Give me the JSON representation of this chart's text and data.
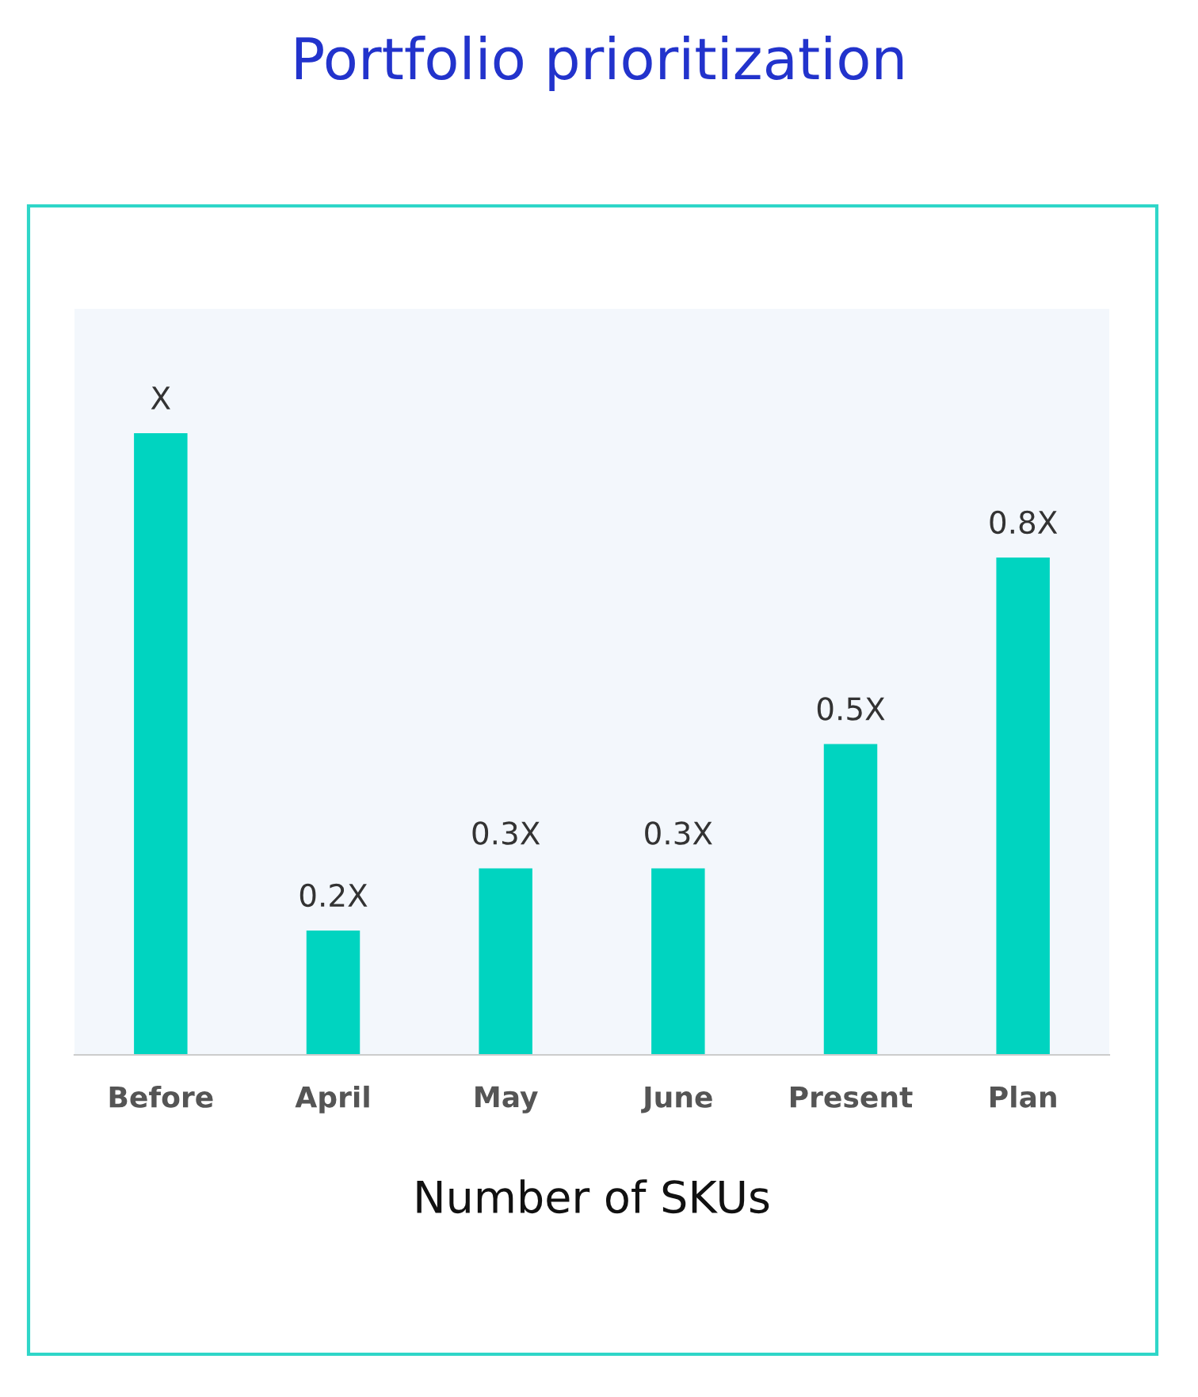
{
  "chart_data": {
    "type": "bar",
    "title": "Portfolio prioritization",
    "xlabel": "Number of SKUs",
    "categories": [
      "Before",
      "April",
      "May",
      "June",
      "Present",
      "Plan"
    ],
    "values": [
      1,
      0.2,
      0.3,
      0.3,
      0.5,
      0.8
    ],
    "value_labels": [
      "X",
      "0.2X",
      "0.3X",
      "0.3X",
      "0.5X",
      "0.8X"
    ],
    "color": "#00d4c0",
    "ylim": [
      0,
      1.2
    ],
    "tick_labels": "x",
    "grid": false,
    "legend": false
  }
}
